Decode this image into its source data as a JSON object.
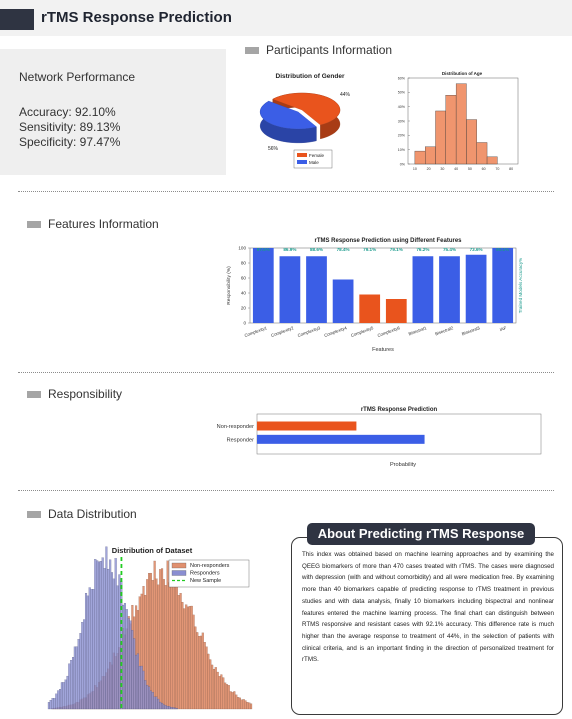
{
  "header": {
    "title": "rTMS Response Prediction"
  },
  "sections": {
    "participants": "Participants Information",
    "features": "Features Information",
    "responsibility": "Responsibility",
    "distribution": "Data Distribution"
  },
  "performance": {
    "title": "Network Performance",
    "accuracy": "Accuracy: 92.10%",
    "sensitivity": "Sensitivity: 89.13%",
    "specificity": "Specificity: 97.47%"
  },
  "chart_data": [
    {
      "type": "pie",
      "title": "Distribution of Gender",
      "categories": [
        "Female",
        "Male"
      ],
      "values": [
        56,
        44
      ],
      "labels": [
        "56%",
        "44%"
      ],
      "colors": [
        "#e9541d",
        "#3b5ee6"
      ],
      "legend_position": "bottom-right"
    },
    {
      "type": "bar",
      "title": "Distribution of Age",
      "x_ticks": [
        "10",
        "20",
        "30",
        "40",
        "50",
        "60",
        "70",
        "80"
      ],
      "y_ticks": [
        "0%",
        "10%",
        "20%",
        "30%",
        "40%",
        "50%",
        "60%"
      ],
      "bin_edges": [
        10,
        17.5,
        25,
        32.5,
        40,
        47.5,
        55,
        62.5,
        70,
        77.5
      ],
      "values": [
        9,
        12,
        37,
        48,
        56,
        31,
        15,
        5,
        0
      ],
      "ylim": [
        0,
        60
      ],
      "color": "#f0956e"
    },
    {
      "type": "bar",
      "title": "rTMS Response Prediction using Different Features",
      "xlabel": "Features",
      "ylabel": "Responsibility (%)",
      "right_label": "Trained Models Accuracy%",
      "categories": [
        "Complexity1",
        "Complexity2",
        "Complexity3",
        "Complexity4",
        "Complexity5",
        "Complexity6",
        "Bisectral1",
        "Bisectral2",
        "Bisectral3",
        "IAF"
      ],
      "values": [
        100,
        89,
        89,
        58,
        38,
        32,
        89,
        89,
        91,
        100
      ],
      "accuracy_labels": [
        "87.5%",
        "86.9%",
        "88.6%",
        "78.4%",
        "79.1%",
        "79.1%",
        "76.2%",
        "75.4%",
        "73.6%",
        "80.1%"
      ],
      "colors": [
        "#3b5ee6",
        "#3b5ee6",
        "#3b5ee6",
        "#3b5ee6",
        "#e9541d",
        "#e9541d",
        "#3b5ee6",
        "#3b5ee6",
        "#3b5ee6",
        "#3b5ee6"
      ],
      "y_ticks": [
        "0",
        "20",
        "40",
        "60",
        "80",
        "100"
      ],
      "ylim": [
        0,
        100
      ]
    },
    {
      "type": "bar",
      "orientation": "horizontal",
      "title": "rTMS Response Prediction",
      "xlabel": "Probability",
      "categories": [
        "Non-responder",
        "Responder"
      ],
      "values": [
        0.35,
        0.59
      ],
      "colors": [
        "#e9541d",
        "#3b5ee6"
      ],
      "xlim": [
        0,
        1
      ]
    },
    {
      "type": "area",
      "title": "Distribution of Dataset",
      "legend": [
        "Non-responders",
        "Responders",
        "New Sample"
      ],
      "legend_position": "top-right",
      "series": [
        {
          "name": "Non-responders",
          "color": "#e0906f",
          "center": 0.56,
          "spread": 0.17,
          "peak": 0.9
        },
        {
          "name": "Responders",
          "color": "#8a8ed1",
          "center": 0.28,
          "spread": 0.11,
          "peak": 1.0
        }
      ],
      "new_sample_x": 0.36,
      "grid": false
    }
  ],
  "about": {
    "title": "About Predicting rTMS Response",
    "body": "This index was obtained based on machine learning approaches and by examining the QEEG biomarkers of more than 470 cases treated with rTMS. The cases were diagnosed with depression (with and without comorbidity) and all were medication free. By examining more than 40 biomarkers capable of predicting response to rTMS treatment in previous studies and with data analysis, finally 10 biomarkers including bispectral and nonlinear features entered the machine learning process. The final chart can distinguish between RTMS responsive and resistant cases with 92.1% accuracy. This difference rate is much higher than the average response to treatment of 44%, in the selection of patients with clinical criteria, and is an important finding in the direction of personalized treatment for rTMS."
  }
}
